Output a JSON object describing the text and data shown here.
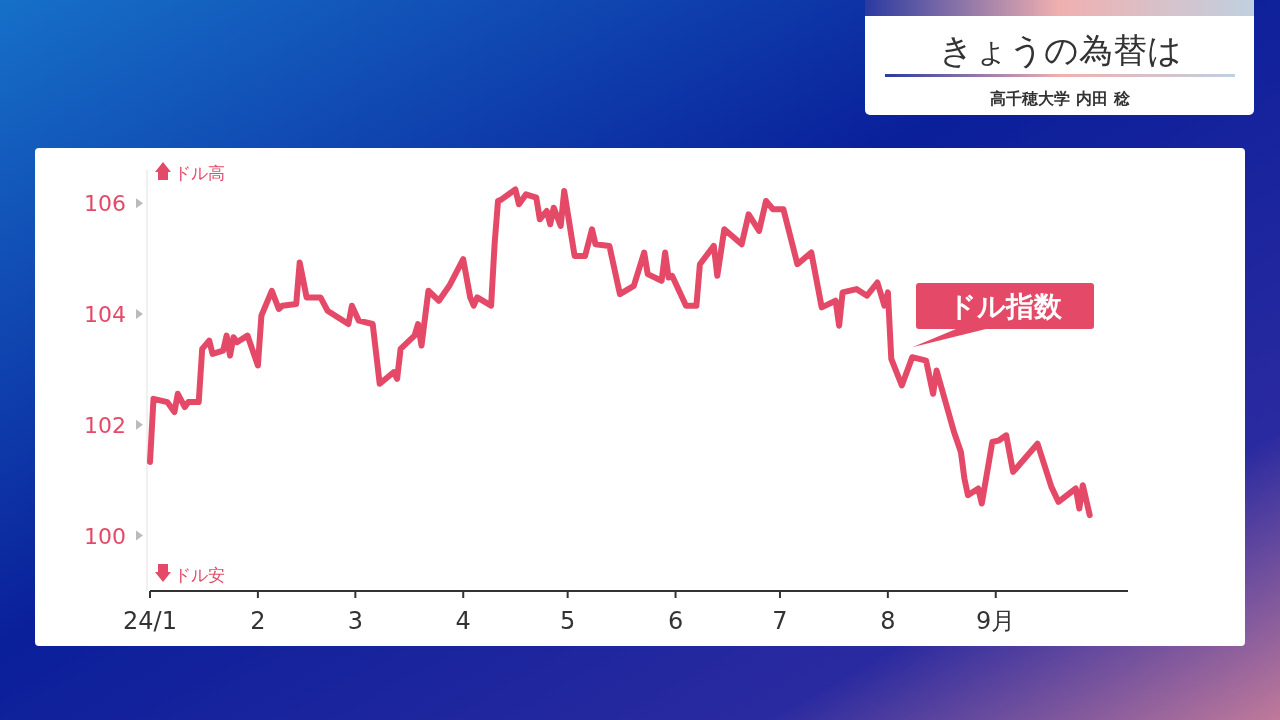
{
  "chart_data": {
    "type": "line",
    "title": "きょうの為替は",
    "subtitle": "高千穂大学 内田 稔",
    "annotations": [
      "ドル高",
      "ドル安"
    ],
    "xlim": [
      "--01-01",
      "--10-09"
    ],
    "xticks": [
      {
        "value": "--01-01",
        "label": "24/1"
      },
      {
        "value": "--02-01",
        "label": "2"
      },
      {
        "value": "--03-01",
        "label": "3"
      },
      {
        "value": "--04-01",
        "label": "4"
      },
      {
        "value": "--05-01",
        "label": "5"
      },
      {
        "value": "--06-01",
        "label": "6"
      },
      {
        "value": "--07-01",
        "label": "7"
      },
      {
        "value": "--08-01",
        "label": "8"
      },
      {
        "value": "--09-01",
        "label": "9月"
      }
    ],
    "ylim": [
      99,
      106.6
    ],
    "yticks": [
      100,
      102,
      104,
      106
    ],
    "grid": false,
    "marker": "none",
    "line_style": "solid",
    "series": [
      {
        "name": "ドル指数",
        "color": "#e44a68",
        "x": [
          "--01-01",
          "--01-02",
          "--01-06",
          "--01-08",
          "--01-09",
          "--01-11",
          "--01-12",
          "--01-15",
          "--01-16",
          "--01-18",
          "--01-19",
          "--01-22",
          "--01-23",
          "--01-24",
          "--01-25",
          "--01-26",
          "--01-29",
          "--02-01",
          "--02-02",
          "--02-05",
          "--02-07",
          "--02-08",
          "--02-12",
          "--02-13",
          "--02-15",
          "--02-19",
          "--02-21",
          "--02-27",
          "--02-28",
          "--03-02",
          "--03-06",
          "--03-08",
          "--03-12",
          "--03-13",
          "--03-14",
          "--03-18",
          "--03-19",
          "--03-20",
          "--03-22",
          "--03-25",
          "--03-28",
          "--04-01",
          "--04-03",
          "--04-04",
          "--04-05",
          "--04-09",
          "--04-10",
          "--04-11",
          "--04-12",
          "--04-16",
          "--04-17",
          "--04-19",
          "--04-22",
          "--04-23",
          "--04-25",
          "--04-26",
          "--04-27",
          "--04-29",
          "--04-30",
          "--05-03",
          "--05-06",
          "--05-08",
          "--05-09",
          "--05-13",
          "--05-16",
          "--05-20",
          "--05-23",
          "--05-24",
          "--05-28",
          "--05-29",
          "--05-30",
          "--05-31",
          "--06-04",
          "--06-07",
          "--06-08",
          "--06-12",
          "--06-13",
          "--06-15",
          "--06-20",
          "--06-22",
          "--06-25",
          "--06-27",
          "--06-29",
          "--07-02",
          "--07-06",
          "--07-10",
          "--07-13",
          "--07-17",
          "--07-18",
          "--07-19",
          "--07-23",
          "--07-26",
          "--07-29",
          "--07-31",
          "--08-01",
          "--08-02",
          "--08-05",
          "--08-08",
          "--08-12",
          "--08-14",
          "--08-15",
          "--08-20",
          "--08-22",
          "--08-23",
          "--08-24",
          "--08-27",
          "--08-28",
          "--08-31",
          "--09-02",
          "--09-04",
          "--09-06",
          "--09-13",
          "--09-17",
          "--09-19",
          "--09-24",
          "--09-25",
          "--09-26",
          "--09-28"
        ],
        "values": [
          101.33,
          102.47,
          102.41,
          102.23,
          102.56,
          102.32,
          102.41,
          102.41,
          103.37,
          103.52,
          103.28,
          103.34,
          103.61,
          103.25,
          103.58,
          103.49,
          103.61,
          103.07,
          103.97,
          104.42,
          104.09,
          104.15,
          104.18,
          104.93,
          104.3,
          104.3,
          104.06,
          103.82,
          104.15,
          103.88,
          103.82,
          102.74,
          102.95,
          102.83,
          103.37,
          103.61,
          103.82,
          103.43,
          104.42,
          104.24,
          104.51,
          104.99,
          104.3,
          104.15,
          104.3,
          104.15,
          105.26,
          106.04,
          106.07,
          106.25,
          105.98,
          106.16,
          106.1,
          105.71,
          105.86,
          105.62,
          105.92,
          105.59,
          106.22,
          105.05,
          105.05,
          105.53,
          105.26,
          105.23,
          104.36,
          104.51,
          105.11,
          104.72,
          104.6,
          105.11,
          104.66,
          104.69,
          104.15,
          104.15,
          104.9,
          105.23,
          104.69,
          105.53,
          105.26,
          105.8,
          105.5,
          106.04,
          105.89,
          105.89,
          104.9,
          105.11,
          104.12,
          104.24,
          103.79,
          104.39,
          104.45,
          104.33,
          104.57,
          104.15,
          104.39,
          103.19,
          102.71,
          103.22,
          103.16,
          102.56,
          102.98,
          101.87,
          101.51,
          101.03,
          100.73,
          100.85,
          100.58,
          101.69,
          101.72,
          101.81,
          101.15,
          101.66,
          100.88,
          100.61,
          100.85,
          100.49,
          100.91,
          100.37
        ]
      }
    ]
  }
}
